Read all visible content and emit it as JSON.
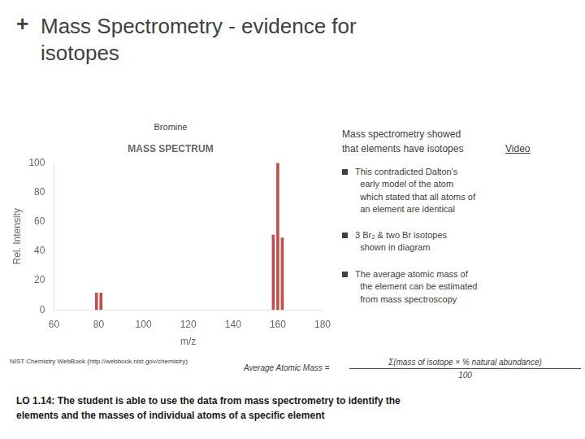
{
  "chart_data": {
    "type": "bar",
    "title": "MASS SPECTRUM",
    "xlabel": "m/z",
    "ylabel": "Rel. Intensity",
    "x": [
      79,
      81,
      158,
      160,
      162
    ],
    "values": [
      11.5,
      11.5,
      51,
      100,
      49
    ],
    "color": "#c0504d",
    "xlim": [
      60,
      180
    ],
    "ylim": [
      0,
      100
    ],
    "xticks": [
      60,
      80,
      100,
      120,
      140,
      160,
      180
    ],
    "yticks": [
      0,
      20,
      40,
      60,
      80,
      100
    ],
    "grid": false,
    "annotations": [
      "+",
      "Mass Spectrometry - evidence for\nisotopes",
      "Bromine",
      "NIST Chemistry WebBook (http://webbook.nist.gov/chemistry)",
      "Mass spectrometry showed",
      "that elements have isotopes",
      "Video",
      "This contradicted Dalton’s\n  early model of the atom\n  which stated that all atoms of\n  an element are identical",
      "3 Br₂ & two Br isotopes\n  shown in diagram",
      "The average atomic mass of\n  the element can be estimated\n  from mass spectroscopy",
      "Average Atomic Mass = ",
      "Σ(mass of isotope × % natural abundance)",
      "100",
      "LO 1.14: The student is able to use the data from mass spectrometry to identify the\nelements and the masses of individual atoms of a specific element"
    ]
  }
}
